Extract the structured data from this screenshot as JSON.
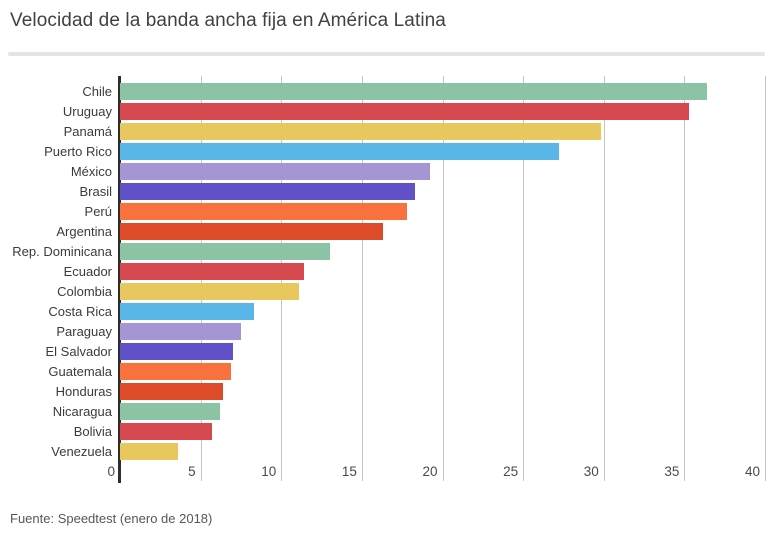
{
  "chart_data": {
    "type": "bar",
    "orientation": "horizontal",
    "title": "Velocidad de la banda ancha fija en América Latina",
    "source": "Fuente: Speedtest (enero de 2018)",
    "xlabel": "",
    "ylabel": "",
    "xlim": [
      0,
      40
    ],
    "xticks": [
      0,
      5,
      10,
      15,
      20,
      25,
      30,
      35,
      40
    ],
    "grid": true,
    "legend": false,
    "categories": [
      "Chile",
      "Uruguay",
      "Panamá",
      "Puerto Rico",
      "México",
      "Brasil",
      "Perú",
      "Argentina",
      "Rep. Dominicana",
      "Ecuador",
      "Colombia",
      "Costa Rica",
      "Paraguay",
      "El Salvador",
      "Guatemala",
      "Honduras",
      "Nicaragua",
      "Bolivia",
      "Venezuela"
    ],
    "values": [
      36.4,
      35.3,
      29.8,
      27.2,
      19.2,
      18.3,
      17.8,
      16.3,
      13.0,
      11.4,
      11.1,
      8.3,
      7.5,
      7.0,
      6.9,
      6.4,
      6.2,
      5.7,
      3.6
    ],
    "bar_colors": [
      "#8dc3a5",
      "#d6494f",
      "#e9c75f",
      "#58b7e7",
      "#a595d2",
      "#6151c9",
      "#f9713c",
      "#de4b29",
      "#8dc3a5",
      "#d6494f",
      "#e9c75f",
      "#58b7e7",
      "#a595d2",
      "#6151c9",
      "#f9713c",
      "#de4b29",
      "#8dc3a5",
      "#d6494f",
      "#e9c75f"
    ],
    "palette": {
      "teal": "#8dc3a5",
      "red": "#d6494f",
      "yellow": "#e9c75f",
      "blue": "#58b7e7",
      "purple": "#a595d2",
      "indigo": "#6151c9",
      "orange": "#f9713c",
      "dark_orange": "#de4b29"
    },
    "axis_color": "#2e2e2e",
    "gridline_color": "#c4c4c4"
  }
}
